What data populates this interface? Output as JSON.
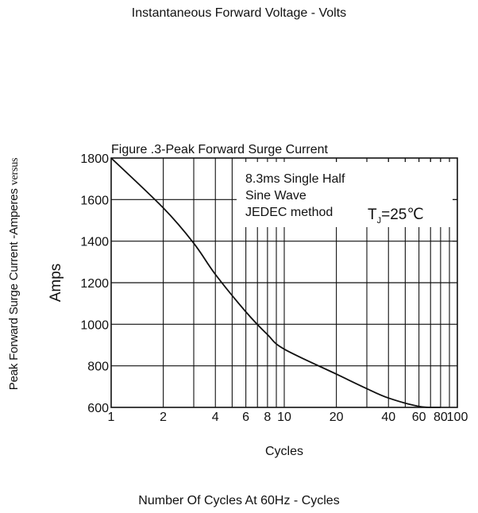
{
  "top_caption": "Instantaneous Forward Voltage - Volts",
  "bottom_caption": "Number Of Cycles At 60Hz - Cycles",
  "side_label_main": "Peak Forward Surge Current -Amperes",
  "side_label_vs": "versus",
  "colors": {
    "ink": "#111111",
    "background": "#ffffff"
  },
  "chart_data": {
    "type": "line",
    "title": "Figure .3-Peak Forward Surge Current",
    "xlabel": "Cycles",
    "ylabel": "Amps",
    "x_scale": "log",
    "xlim": [
      1,
      100
    ],
    "ylim": [
      600,
      1800
    ],
    "x_tick_labels": [
      "1",
      "2",
      "4",
      "6",
      "8",
      "10",
      "20",
      "40",
      "60",
      "80",
      "100"
    ],
    "x_tick_values": [
      1,
      2,
      4,
      6,
      8,
      10,
      20,
      40,
      60,
      80,
      100
    ],
    "y_ticks": [
      600,
      800,
      1000,
      1200,
      1400,
      1600,
      1800
    ],
    "grid": true,
    "annotation_lines": [
      "8.3ms Single Half",
      "Sine Wave",
      "JEDEC method"
    ],
    "tj": {
      "symbol": "T",
      "subscript": "J",
      "value": "=25",
      "unit": "℃"
    },
    "series": [
      {
        "x": [
          1,
          2,
          3,
          4,
          6,
          8,
          10,
          20,
          30,
          40,
          60,
          80
        ],
        "y": [
          1800,
          1560,
          1390,
          1240,
          1060,
          950,
          880,
          760,
          690,
          645,
          605,
          600
        ]
      }
    ]
  }
}
